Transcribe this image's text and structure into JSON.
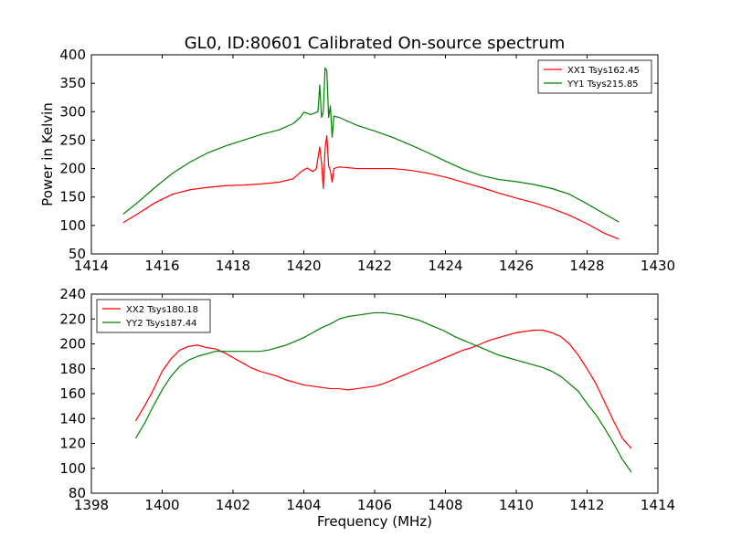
{
  "chart_data": [
    {
      "type": "line",
      "title": "GL0, ID:80601 Calibrated On-source spectrum",
      "xlabel": "",
      "ylabel": "Power in Kelvin",
      "xlim": [
        1414,
        1430
      ],
      "ylim": [
        50,
        400
      ],
      "xticks": [
        "1414",
        "1416",
        "1418",
        "1420",
        "1422",
        "1424",
        "1426",
        "1428",
        "1430"
      ],
      "yticks": [
        "50",
        "100",
        "150",
        "200",
        "250",
        "300",
        "350",
        "400"
      ],
      "grid": false,
      "legend_position": "top-right",
      "series": [
        {
          "name": "XX1 Tsys162.45",
          "color": "#ff0000",
          "points": [
            [
              1414.9,
              105
            ],
            [
              1415.3,
              120
            ],
            [
              1415.8,
              140
            ],
            [
              1416.3,
              155
            ],
            [
              1416.8,
              163
            ],
            [
              1417.3,
              167
            ],
            [
              1417.8,
              170
            ],
            [
              1418.3,
              171
            ],
            [
              1418.8,
              173
            ],
            [
              1419.3,
              176
            ],
            [
              1419.7,
              182
            ],
            [
              1419.95,
              196
            ],
            [
              1420.1,
              201
            ],
            [
              1420.25,
              195
            ],
            [
              1420.35,
              199
            ],
            [
              1420.45,
              238
            ],
            [
              1420.5,
              210
            ],
            [
              1420.55,
              165
            ],
            [
              1420.6,
              235
            ],
            [
              1420.65,
              258
            ],
            [
              1420.7,
              205
            ],
            [
              1420.75,
              196
            ],
            [
              1420.8,
              176
            ],
            [
              1420.85,
              200
            ],
            [
              1421.0,
              203
            ],
            [
              1421.5,
              200
            ],
            [
              1422.0,
              200
            ],
            [
              1422.5,
              200
            ],
            [
              1423.0,
              197
            ],
            [
              1423.5,
              192
            ],
            [
              1424.0,
              185
            ],
            [
              1424.5,
              176
            ],
            [
              1425.0,
              167
            ],
            [
              1425.5,
              157
            ],
            [
              1426.0,
              148
            ],
            [
              1426.5,
              140
            ],
            [
              1427.0,
              130
            ],
            [
              1427.5,
              118
            ],
            [
              1428.0,
              103
            ],
            [
              1428.5,
              86
            ],
            [
              1428.9,
              76
            ]
          ]
        },
        {
          "name": "YY1 Tsys215.85",
          "color": "#008000",
          "points": [
            [
              1414.9,
              120
            ],
            [
              1415.3,
              140
            ],
            [
              1415.8,
              167
            ],
            [
              1416.3,
              192
            ],
            [
              1416.8,
              212
            ],
            [
              1417.3,
              228
            ],
            [
              1417.8,
              240
            ],
            [
              1418.3,
              250
            ],
            [
              1418.8,
              260
            ],
            [
              1419.3,
              268
            ],
            [
              1419.7,
              279
            ],
            [
              1419.9,
              290
            ],
            [
              1420.0,
              299
            ],
            [
              1420.2,
              295
            ],
            [
              1420.4,
              300
            ],
            [
              1420.45,
              347
            ],
            [
              1420.5,
              290
            ],
            [
              1420.55,
              300
            ],
            [
              1420.6,
              377
            ],
            [
              1420.65,
              372
            ],
            [
              1420.7,
              290
            ],
            [
              1420.75,
              310
            ],
            [
              1420.8,
              255
            ],
            [
              1420.85,
              292
            ],
            [
              1421.0,
              290
            ],
            [
              1421.5,
              276
            ],
            [
              1422.0,
              266
            ],
            [
              1422.5,
              255
            ],
            [
              1423.0,
              242
            ],
            [
              1423.5,
              228
            ],
            [
              1424.0,
              213
            ],
            [
              1424.5,
              199
            ],
            [
              1425.0,
              188
            ],
            [
              1425.5,
              181
            ],
            [
              1426.0,
              177
            ],
            [
              1426.5,
              172
            ],
            [
              1427.0,
              165
            ],
            [
              1427.5,
              155
            ],
            [
              1428.0,
              138
            ],
            [
              1428.5,
              120
            ],
            [
              1428.9,
              106
            ]
          ]
        }
      ]
    },
    {
      "type": "line",
      "title": "",
      "xlabel": "Frequency (MHz)",
      "ylabel": "",
      "xlim": [
        1398,
        1414
      ],
      "ylim": [
        80,
        240
      ],
      "xticks": [
        "1398",
        "1400",
        "1402",
        "1404",
        "1406",
        "1408",
        "1410",
        "1412",
        "1414"
      ],
      "yticks": [
        "80",
        "100",
        "120",
        "140",
        "160",
        "180",
        "200",
        "220",
        "240"
      ],
      "grid": false,
      "legend_position": "top-left",
      "series": [
        {
          "name": "XX2 Tsys180.18",
          "color": "#ff0000",
          "points": [
            [
              1399.25,
              138
            ],
            [
              1399.5,
              150
            ],
            [
              1399.75,
              163
            ],
            [
              1400.0,
              178
            ],
            [
              1400.25,
              188
            ],
            [
              1400.5,
              195
            ],
            [
              1400.75,
              198
            ],
            [
              1401.0,
              199
            ],
            [
              1401.25,
              197
            ],
            [
              1401.5,
              196
            ],
            [
              1401.75,
              193
            ],
            [
              1402.0,
              189
            ],
            [
              1402.25,
              185
            ],
            [
              1402.5,
              181
            ],
            [
              1402.75,
              178
            ],
            [
              1403.0,
              176
            ],
            [
              1403.25,
              174
            ],
            [
              1403.5,
              171
            ],
            [
              1403.75,
              169
            ],
            [
              1404.0,
              167
            ],
            [
              1404.25,
              166
            ],
            [
              1404.5,
              165
            ],
            [
              1404.75,
              164
            ],
            [
              1405.0,
              164
            ],
            [
              1405.25,
              163
            ],
            [
              1405.5,
              164
            ],
            [
              1405.75,
              165
            ],
            [
              1406.0,
              166
            ],
            [
              1406.25,
              168
            ],
            [
              1406.5,
              171
            ],
            [
              1406.75,
              174
            ],
            [
              1407.0,
              177
            ],
            [
              1407.25,
              180
            ],
            [
              1407.5,
              183
            ],
            [
              1407.75,
              186
            ],
            [
              1408.0,
              189
            ],
            [
              1408.25,
              192
            ],
            [
              1408.5,
              195
            ],
            [
              1408.75,
              197
            ],
            [
              1409.0,
              200
            ],
            [
              1409.25,
              203
            ],
            [
              1409.5,
              205
            ],
            [
              1409.75,
              207
            ],
            [
              1410.0,
              209
            ],
            [
              1410.25,
              210
            ],
            [
              1410.5,
              211
            ],
            [
              1410.75,
              211
            ],
            [
              1411.0,
              209
            ],
            [
              1411.25,
              206
            ],
            [
              1411.5,
              200
            ],
            [
              1411.75,
              191
            ],
            [
              1412.0,
              180
            ],
            [
              1412.25,
              168
            ],
            [
              1412.5,
              153
            ],
            [
              1412.75,
              138
            ],
            [
              1413.0,
              124
            ],
            [
              1413.25,
              116
            ]
          ]
        },
        {
          "name": "YY2 Tsys187.44",
          "color": "#008000",
          "points": [
            [
              1399.25,
              124
            ],
            [
              1399.5,
              136
            ],
            [
              1399.75,
              150
            ],
            [
              1400.0,
              163
            ],
            [
              1400.25,
              174
            ],
            [
              1400.5,
              182
            ],
            [
              1400.75,
              187
            ],
            [
              1401.0,
              190
            ],
            [
              1401.25,
              192
            ],
            [
              1401.5,
              194
            ],
            [
              1401.75,
              194
            ],
            [
              1402.0,
              194
            ],
            [
              1402.25,
              194
            ],
            [
              1402.5,
              194
            ],
            [
              1402.75,
              194
            ],
            [
              1403.0,
              195
            ],
            [
              1403.25,
              197
            ],
            [
              1403.5,
              199
            ],
            [
              1403.75,
              202
            ],
            [
              1404.0,
              205
            ],
            [
              1404.25,
              209
            ],
            [
              1404.5,
              213
            ],
            [
              1404.75,
              216
            ],
            [
              1405.0,
              220
            ],
            [
              1405.25,
              222
            ],
            [
              1405.5,
              223
            ],
            [
              1405.75,
              224
            ],
            [
              1406.0,
              225
            ],
            [
              1406.25,
              225
            ],
            [
              1406.5,
              224
            ],
            [
              1406.75,
              223
            ],
            [
              1407.0,
              221
            ],
            [
              1407.25,
              219
            ],
            [
              1407.5,
              216
            ],
            [
              1407.75,
              213
            ],
            [
              1408.0,
              210
            ],
            [
              1408.25,
              206
            ],
            [
              1408.5,
              203
            ],
            [
              1408.75,
              200
            ],
            [
              1409.0,
              197
            ],
            [
              1409.25,
              194
            ],
            [
              1409.5,
              191
            ],
            [
              1409.75,
              189
            ],
            [
              1410.0,
              187
            ],
            [
              1410.25,
              185
            ],
            [
              1410.5,
              183
            ],
            [
              1410.75,
              181
            ],
            [
              1411.0,
              178
            ],
            [
              1411.25,
              174
            ],
            [
              1411.5,
              168
            ],
            [
              1411.75,
              162
            ],
            [
              1412.0,
              152
            ],
            [
              1412.25,
              143
            ],
            [
              1412.5,
              132
            ],
            [
              1412.75,
              120
            ],
            [
              1413.0,
              107
            ],
            [
              1413.25,
              97
            ]
          ]
        }
      ]
    }
  ]
}
